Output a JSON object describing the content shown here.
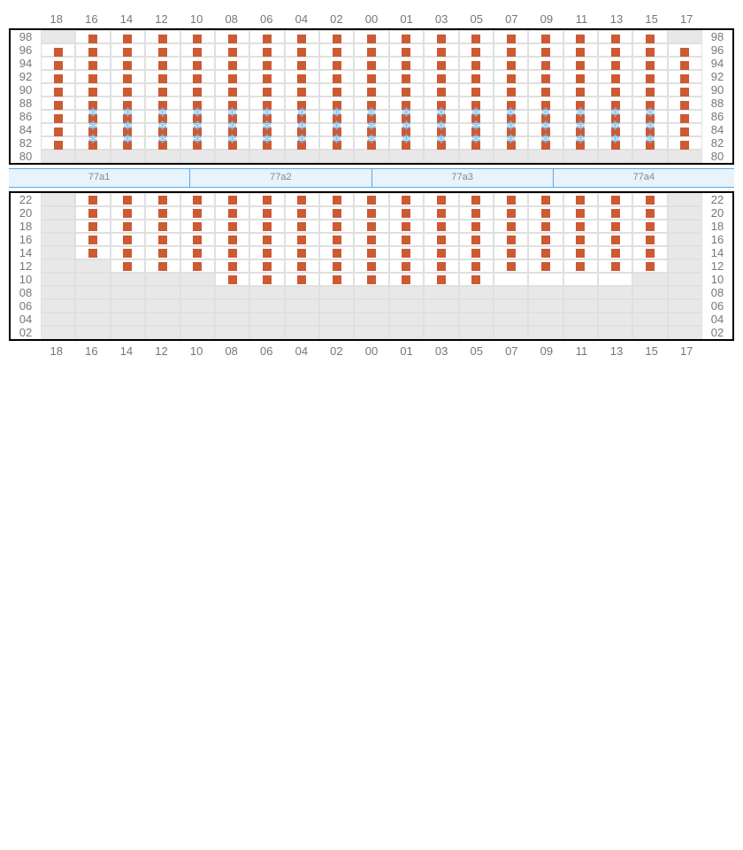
{
  "colors": {
    "square": "#cc5a33",
    "snowflake": "#77bff2",
    "empty_bg": "#e8e8e8",
    "active_bg": "#ffffff",
    "grid_line": "#e0e0e0",
    "panel_border": "#000000",
    "aisle_bg": "#e8f3fc",
    "aisle_border": "#5aa9e6",
    "label_color": "#777777"
  },
  "columns": [
    "18",
    "16",
    "14",
    "12",
    "10",
    "08",
    "06",
    "04",
    "02",
    "00",
    "01",
    "03",
    "05",
    "07",
    "09",
    "11",
    "13",
    "15",
    "17"
  ],
  "top_panel": {
    "rows": [
      "98",
      "96",
      "94",
      "92",
      "90",
      "88",
      "86",
      "84",
      "82",
      "80"
    ],
    "cells": [
      [
        "E",
        "T",
        "T",
        "T",
        "T",
        "T",
        "T",
        "T",
        "T",
        "T",
        "T",
        "T",
        "T",
        "T",
        "T",
        "T",
        "T",
        "T",
        "E"
      ],
      [
        "T",
        "T",
        "T",
        "T",
        "T",
        "T",
        "T",
        "T",
        "T",
        "T",
        "T",
        "T",
        "T",
        "T",
        "T",
        "T",
        "T",
        "T",
        "T"
      ],
      [
        "T",
        "T",
        "T",
        "T",
        "T",
        "T",
        "T",
        "T",
        "T",
        "T",
        "T",
        "T",
        "T",
        "T",
        "T",
        "T",
        "T",
        "T",
        "T"
      ],
      [
        "T",
        "T",
        "T",
        "T",
        "T",
        "T",
        "T",
        "T",
        "T",
        "T",
        "T",
        "T",
        "T",
        "T",
        "T",
        "T",
        "T",
        "T",
        "T"
      ],
      [
        "T",
        "T",
        "T",
        "T",
        "T",
        "T",
        "T",
        "T",
        "T",
        "T",
        "T",
        "T",
        "T",
        "T",
        "T",
        "T",
        "T",
        "T",
        "T"
      ],
      [
        "T",
        "T",
        "T",
        "T",
        "T",
        "T",
        "T",
        "T",
        "T",
        "T",
        "T",
        "T",
        "T",
        "T",
        "T",
        "T",
        "T",
        "T",
        "T"
      ],
      [
        "T",
        "TS",
        "TS",
        "TS",
        "TS",
        "TS",
        "TS",
        "TS",
        "TS",
        "TS",
        "TS",
        "TS",
        "TS",
        "TS",
        "TS",
        "TS",
        "TS",
        "TS",
        "T"
      ],
      [
        "T",
        "TS",
        "TS",
        "TS",
        "TS",
        "TS",
        "TS",
        "TS",
        "TS",
        "TS",
        "TS",
        "TS",
        "TS",
        "TS",
        "TS",
        "TS",
        "TS",
        "TS",
        "T"
      ],
      [
        "T",
        "TS",
        "TS",
        "TS",
        "TS",
        "TS",
        "TS",
        "TS",
        "TS",
        "TS",
        "TS",
        "TS",
        "TS",
        "TS",
        "TS",
        "TS",
        "TS",
        "TS",
        "T"
      ],
      [
        "E",
        "E",
        "E",
        "E",
        "E",
        "E",
        "E",
        "E",
        "E",
        "E",
        "E",
        "E",
        "E",
        "E",
        "E",
        "E",
        "E",
        "E",
        "E"
      ]
    ]
  },
  "aisle": {
    "segments": [
      "77a1",
      "77a2",
      "77a3",
      "77a4"
    ]
  },
  "bottom_panel": {
    "rows": [
      "22",
      "20",
      "18",
      "16",
      "14",
      "12",
      "10",
      "08",
      "06",
      "04",
      "02"
    ],
    "cells": [
      [
        "E",
        "C",
        "C",
        "C",
        "C",
        "C",
        "C",
        "C",
        "C",
        "C",
        "C",
        "C",
        "C",
        "C",
        "C",
        "C",
        "C",
        "C",
        "E"
      ],
      [
        "E",
        "C",
        "C",
        "C",
        "C",
        "C",
        "C",
        "C",
        "C",
        "C",
        "C",
        "C",
        "C",
        "C",
        "C",
        "C",
        "C",
        "C",
        "E"
      ],
      [
        "E",
        "C",
        "C",
        "C",
        "C",
        "C",
        "C",
        "C",
        "C",
        "C",
        "C",
        "C",
        "C",
        "C",
        "C",
        "C",
        "C",
        "C",
        "E"
      ],
      [
        "E",
        "C",
        "C",
        "C",
        "C",
        "C",
        "C",
        "C",
        "C",
        "C",
        "C",
        "C",
        "C",
        "C",
        "C",
        "C",
        "C",
        "C",
        "E"
      ],
      [
        "E",
        "C",
        "C",
        "C",
        "C",
        "C",
        "C",
        "C",
        "C",
        "C",
        "C",
        "C",
        "C",
        "C",
        "C",
        "C",
        "C",
        "C",
        "E"
      ],
      [
        "E",
        "E",
        "C",
        "C",
        "C",
        "C",
        "C",
        "C",
        "C",
        "C",
        "C",
        "C",
        "C",
        "C",
        "C",
        "C",
        "C",
        "C",
        "E"
      ],
      [
        "E",
        "E",
        "E",
        "E",
        "E",
        "C",
        "C",
        "C",
        "C",
        "C",
        "C",
        "C",
        "C",
        "A",
        "A",
        "A",
        "A",
        "E",
        "E"
      ],
      [
        "E",
        "E",
        "E",
        "E",
        "E",
        "E",
        "E",
        "E",
        "E",
        "E",
        "E",
        "E",
        "E",
        "E",
        "E",
        "E",
        "E",
        "E",
        "E"
      ],
      [
        "E",
        "E",
        "E",
        "E",
        "E",
        "E",
        "E",
        "E",
        "E",
        "E",
        "E",
        "E",
        "E",
        "E",
        "E",
        "E",
        "E",
        "E",
        "E"
      ],
      [
        "E",
        "E",
        "E",
        "E",
        "E",
        "E",
        "E",
        "E",
        "E",
        "E",
        "E",
        "E",
        "E",
        "E",
        "E",
        "E",
        "E",
        "E",
        "E"
      ],
      [
        "E",
        "E",
        "E",
        "E",
        "E",
        "E",
        "E",
        "E",
        "E",
        "E",
        "E",
        "E",
        "E",
        "E",
        "E",
        "E",
        "E",
        "E",
        "E"
      ]
    ]
  }
}
